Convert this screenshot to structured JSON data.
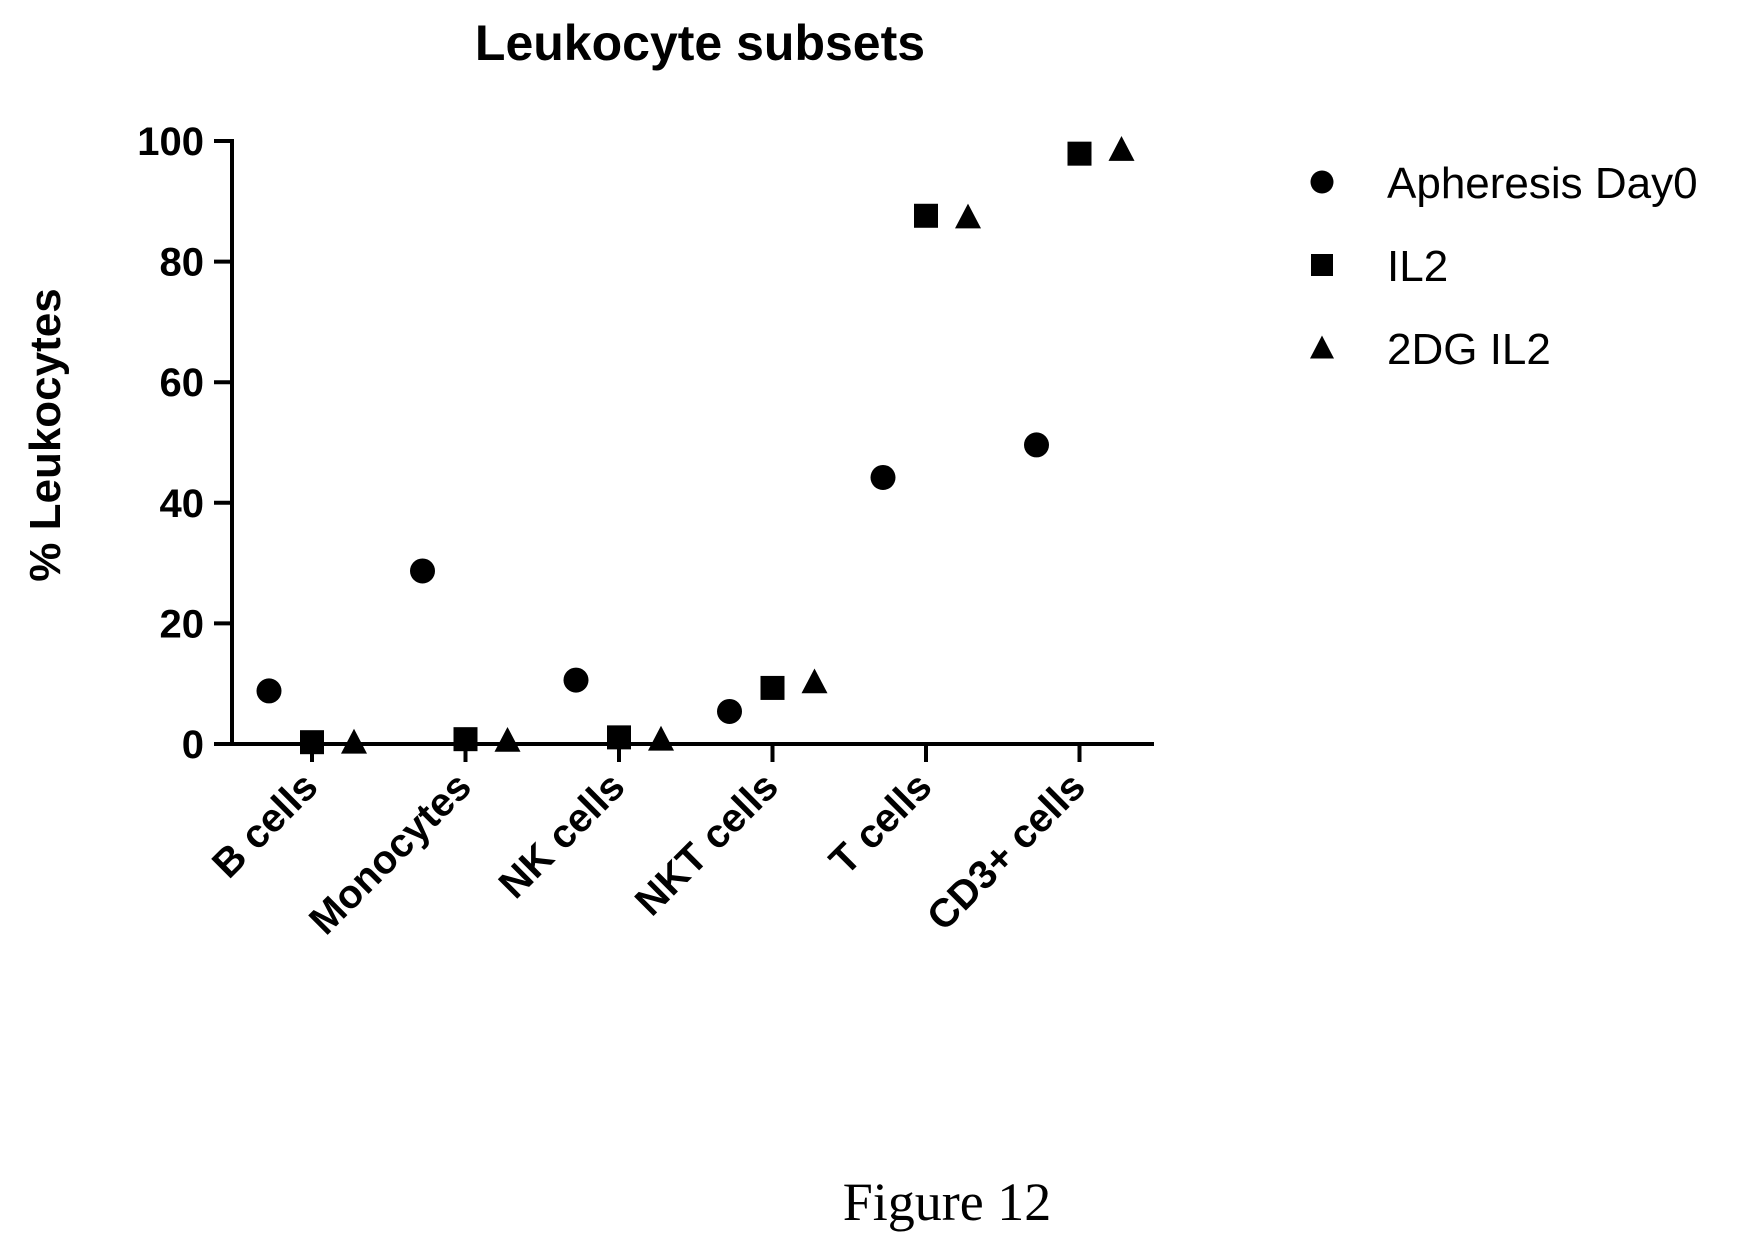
{
  "chart_data": {
    "type": "scatter",
    "title": "Leukocyte subsets",
    "xlabel": "",
    "ylabel": "% Leukocytes",
    "categories": [
      "B cells",
      "Monocytes",
      "NK cells",
      "NKT cells",
      "T cells",
      "CD3+ cells"
    ],
    "yticks": [
      "0",
      "20",
      "40",
      "60",
      "80",
      "100"
    ],
    "ylim": [
      0,
      100
    ],
    "grid": false,
    "legend_position": "right",
    "series": [
      {
        "name": "Apheresis Day0",
        "marker": "circle",
        "color": "#000000",
        "values": [
          8.8,
          28.7,
          10.6,
          5.4,
          44.2,
          49.6
        ]
      },
      {
        "name": "IL2",
        "marker": "square",
        "color": "#000000",
        "values": [
          0.3,
          0.8,
          1.1,
          9.3,
          87.6,
          97.9
        ]
      },
      {
        "name": "2DG IL2",
        "marker": "triangle",
        "color": "#000000",
        "values": [
          0.3,
          0.6,
          0.8,
          10.3,
          87.4,
          98.6
        ]
      }
    ]
  },
  "caption": "Figure 12"
}
